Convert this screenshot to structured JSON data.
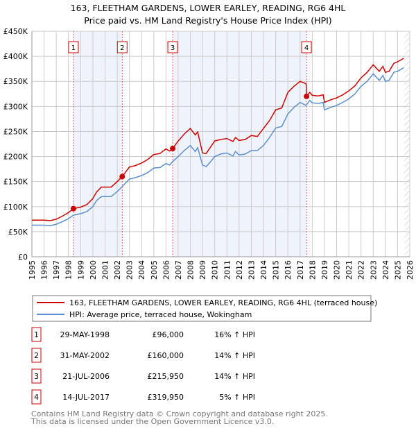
{
  "chart_data": {
    "type": "line",
    "title": "163, FLEETHAM GARDENS, LOWER EARLEY, READING, RG6 4HL",
    "subtitle": "Price paid vs. HM Land Registry's House Price Index (HPI)",
    "xlim": [
      1995,
      2026
    ],
    "ylim": [
      0,
      450000
    ],
    "y_ticks": [
      {
        "v": 0,
        "label": "£0"
      },
      {
        "v": 50000,
        "label": "£50K"
      },
      {
        "v": 100000,
        "label": "£100K"
      },
      {
        "v": 150000,
        "label": "£150K"
      },
      {
        "v": 200000,
        "label": "£200K"
      },
      {
        "v": 250000,
        "label": "£250K"
      },
      {
        "v": 300000,
        "label": "£300K"
      },
      {
        "v": 350000,
        "label": "£350K"
      },
      {
        "v": 400000,
        "label": "£400K"
      },
      {
        "v": 450000,
        "label": "£450K"
      }
    ],
    "x_ticks": [
      "1995",
      "1996",
      "1997",
      "1998",
      "1999",
      "2000",
      "2001",
      "2002",
      "2003",
      "2004",
      "2005",
      "2006",
      "2007",
      "2008",
      "2009",
      "2010",
      "2011",
      "2012",
      "2013",
      "2014",
      "2015",
      "2016",
      "2017",
      "2018",
      "2019",
      "2020",
      "2021",
      "2022",
      "2023",
      "2024",
      "2025",
      "2026"
    ],
    "grid": true,
    "forecast_start": 2025.55,
    "series": [
      {
        "name": "163, FLEETHAM GARDENS, LOWER EARLEY, READING, RG6 4HL (terraced house)",
        "color": "#cc0000",
        "x": [
          1995,
          1996,
          1996.5,
          1997,
          1997.5,
          1998,
          1998.41,
          1999,
          1999.5,
          2000,
          2000.3,
          2000.7,
          2001.5,
          2002,
          2002.41,
          2003,
          2003.5,
          2004,
          2004.5,
          2005,
          2005.5,
          2006,
          2006.3,
          2006.55,
          2007,
          2007.5,
          2008,
          2008.4,
          2008.6,
          2009,
          2009.3,
          2009.6,
          2010,
          2010.5,
          2011,
          2011.5,
          2011.7,
          2012,
          2012.5,
          2013,
          2013.5,
          2014,
          2014.5,
          2015,
          2015.5,
          2016,
          2016.5,
          2017,
          2017.5,
          2017.53,
          2017.8,
          2018,
          2018.5,
          2018.9,
          2019,
          2019.5,
          2020,
          2020.5,
          2021,
          2021.5,
          2022,
          2022.5,
          2023,
          2023.5,
          2023.8,
          2024,
          2024.3,
          2024.7,
          2025,
          2025.5
        ],
        "y": [
          73000,
          73000,
          72000,
          75000,
          81000,
          88000,
          96000,
          99000,
          104000,
          116000,
          129000,
          139000,
          139000,
          150000,
          160000,
          179000,
          182000,
          187000,
          194000,
          204000,
          206000,
          215000,
          211000,
          216000,
          231000,
          245000,
          256000,
          243000,
          249000,
          207000,
          206000,
          217000,
          231000,
          234000,
          236000,
          230000,
          238000,
          232000,
          234000,
          242000,
          240000,
          256000,
          272000,
          293000,
          297000,
          328000,
          340000,
          350000,
          345000,
          320000,
          328000,
          322000,
          321000,
          323000,
          308000,
          313000,
          317000,
          323000,
          331000,
          341000,
          357000,
          368000,
          383000,
          370000,
          380000,
          368000,
          370000,
          386000,
          389000,
          396000
        ]
      },
      {
        "name": "HPI: Average price, terraced house, Wokingham",
        "color": "#5b8fd0",
        "x": [
          1995,
          1996,
          1996.5,
          1997,
          1997.5,
          1998,
          1998.41,
          1999,
          1999.5,
          2000,
          2000.3,
          2000.7,
          2001.5,
          2002,
          2002.41,
          2003,
          2003.5,
          2004,
          2004.5,
          2005,
          2005.5,
          2006,
          2006.3,
          2006.55,
          2007,
          2007.5,
          2008,
          2008.4,
          2008.6,
          2009,
          2009.3,
          2009.6,
          2010,
          2010.5,
          2011,
          2011.5,
          2011.7,
          2012,
          2012.5,
          2013,
          2013.5,
          2014,
          2014.5,
          2015,
          2015.5,
          2016,
          2016.5,
          2017,
          2017.5,
          2017.8,
          2018,
          2018.5,
          2018.9,
          2019,
          2019.5,
          2020,
          2020.5,
          2021,
          2021.5,
          2022,
          2022.5,
          2023,
          2023.5,
          2023.8,
          2024,
          2024.3,
          2024.7,
          2025,
          2025.5
        ],
        "y": [
          63000,
          63000,
          62000,
          65000,
          70000,
          76000,
          83000,
          86000,
          90000,
          100000,
          112000,
          120000,
          120000,
          130000,
          140000,
          155000,
          158000,
          162000,
          168000,
          177000,
          178000,
          186000,
          183000,
          190000,
          200000,
          212000,
          222000,
          210000,
          218000,
          183000,
          180000,
          188000,
          200000,
          205000,
          207000,
          201000,
          210000,
          203000,
          205000,
          212000,
          212000,
          222000,
          238000,
          257000,
          260000,
          285000,
          298000,
          308000,
          302000,
          312000,
          307000,
          306000,
          308000,
          293000,
          298000,
          302000,
          308000,
          315000,
          325000,
          340000,
          350000,
          365000,
          352000,
          362000,
          350000,
          352000,
          368000,
          370000,
          377000
        ]
      }
    ],
    "sales": [
      {
        "num": "1",
        "x": 1998.41,
        "date": "29-MAY-1998",
        "price": "£96,000",
        "value": 96000,
        "hpi": "16% ↑ HPI"
      },
      {
        "num": "2",
        "x": 2002.41,
        "date": "31-MAY-2002",
        "price": "£160,000",
        "value": 160000,
        "hpi": "14% ↑ HPI"
      },
      {
        "num": "3",
        "x": 2006.55,
        "date": "21-JUL-2006",
        "price": "£215,950",
        "value": 215950,
        "hpi": "14% ↑ HPI"
      },
      {
        "num": "4",
        "x": 2017.53,
        "date": "14-JUL-2017",
        "price": "£319,950",
        "value": 319950,
        "hpi": "5% ↑ HPI"
      }
    ]
  },
  "footer": [
    "Contains HM Land Registry data © Crown copyright and database right 2025.",
    "This data is licensed under the Open Government Licence v3.0."
  ]
}
